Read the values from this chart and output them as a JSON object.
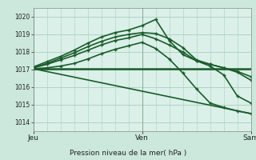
{
  "bg_color": "#cce8dd",
  "plot_bg_color": "#daf0e8",
  "grid_color": "#aacfbf",
  "line_color": "#1a5c2a",
  "title": "Pression niveau de la mer( hPa )",
  "ylim": [
    1013.5,
    1020.5
  ],
  "xlim": [
    0,
    48
  ],
  "yticks": [
    1014,
    1015,
    1016,
    1017,
    1018,
    1019,
    1020
  ],
  "xtick_labels": [
    "Jeu",
    "Ven",
    "Sam"
  ],
  "xtick_positions": [
    0,
    24,
    48
  ],
  "series": [
    {
      "x": [
        0,
        48
      ],
      "y": [
        1017.05,
        1017.05
      ],
      "marker": false,
      "linewidth": 1.8
    },
    {
      "x": [
        0,
        48
      ],
      "y": [
        1017.05,
        1014.5
      ],
      "marker": false,
      "linewidth": 1.2
    },
    {
      "x": [
        0,
        3,
        6,
        9,
        12,
        15,
        18,
        21,
        24,
        27,
        30,
        33,
        36,
        39,
        42,
        45,
        48
      ],
      "y": [
        1017.1,
        1017.3,
        1017.55,
        1017.8,
        1018.1,
        1018.4,
        1018.65,
        1018.8,
        1019.0,
        1018.75,
        1018.4,
        1018.0,
        1017.5,
        1017.2,
        1016.7,
        1015.5,
        1015.1
      ],
      "marker": true,
      "linewidth": 1.2
    },
    {
      "x": [
        0,
        3,
        6,
        9,
        12,
        15,
        18,
        21,
        24,
        27,
        30,
        33,
        36,
        39,
        42,
        45,
        48
      ],
      "y": [
        1017.15,
        1017.45,
        1017.75,
        1018.1,
        1018.5,
        1018.85,
        1019.1,
        1019.25,
        1019.5,
        1019.85,
        1018.65,
        1017.85,
        1017.5,
        1017.3,
        1017.1,
        1016.85,
        1016.4
      ],
      "marker": true,
      "linewidth": 1.2
    },
    {
      "x": [
        0,
        3,
        6,
        9,
        12,
        15,
        18,
        21,
        24,
        27,
        30,
        33,
        36,
        39,
        42,
        45,
        48
      ],
      "y": [
        1017.1,
        1017.35,
        1017.65,
        1017.95,
        1018.3,
        1018.6,
        1018.85,
        1019.0,
        1019.1,
        1019.05,
        1018.75,
        1018.25,
        1017.55,
        1017.3,
        1017.1,
        1016.9,
        1016.6
      ],
      "marker": true,
      "linewidth": 1.2
    },
    {
      "x": [
        0,
        3,
        6,
        9,
        12,
        15,
        18,
        21,
        24,
        27,
        30,
        33,
        36,
        39,
        42,
        45,
        48
      ],
      "y": [
        1017.05,
        1017.1,
        1017.2,
        1017.35,
        1017.6,
        1017.9,
        1018.15,
        1018.35,
        1018.55,
        1018.2,
        1017.6,
        1016.8,
        1015.9,
        1015.1,
        1014.85,
        1014.65,
        1014.5
      ],
      "marker": true,
      "linewidth": 1.2
    }
  ]
}
